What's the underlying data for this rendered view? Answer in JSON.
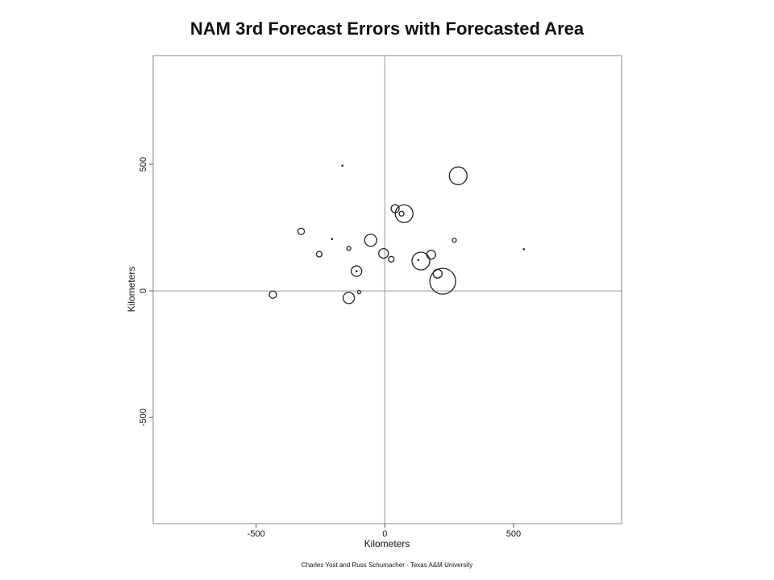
{
  "chart_data": {
    "type": "scatter",
    "title": "NAM 3rd Forecast Errors with Forecasted Area",
    "xlabel": "Kilometers",
    "ylabel": "Kilometers",
    "xlim": [
      -900,
      920
    ],
    "ylim": [
      -920,
      930
    ],
    "xticks": [
      -500,
      0,
      500
    ],
    "yticks": [
      500,
      0,
      -500
    ],
    "xtick_labels": [
      "-500",
      "0",
      "500"
    ],
    "ytick_labels": [
      "500",
      "0",
      "-500"
    ],
    "reference_lines": [
      0
    ],
    "grid": false,
    "legend": "none",
    "credit": "Charles Yost and Russ Schumacher - Texas A&M University",
    "colors": {
      "marker": "#222222",
      "frame": "#888888",
      "reference": "#999999"
    },
    "points": [
      {
        "x": -165,
        "y": 495,
        "size": 0.5
      },
      {
        "x": 285,
        "y": 455,
        "size": 11
      },
      {
        "x": 75,
        "y": 305,
        "size": 11
      },
      {
        "x": 40,
        "y": 325,
        "size": 5
      },
      {
        "x": 65,
        "y": 305,
        "size": 3
      },
      {
        "x": -325,
        "y": 235,
        "size": 4
      },
      {
        "x": -205,
        "y": 205,
        "size": 1
      },
      {
        "x": -55,
        "y": 200,
        "size": 7.5
      },
      {
        "x": 270,
        "y": 200,
        "size": 2.5
      },
      {
        "x": -140,
        "y": 168,
        "size": 2.5
      },
      {
        "x": 540,
        "y": 165,
        "size": 1
      },
      {
        "x": -255,
        "y": 145,
        "size": 3.5
      },
      {
        "x": -5,
        "y": 148,
        "size": 6
      },
      {
        "x": 180,
        "y": 143,
        "size": 5.5
      },
      {
        "x": 25,
        "y": 125,
        "size": 3.5
      },
      {
        "x": 140,
        "y": 118,
        "size": 11
      },
      {
        "x": 130,
        "y": 122,
        "size": 0.8
      },
      {
        "x": -110,
        "y": 78,
        "size": 6.5
      },
      {
        "x": -110,
        "y": 78,
        "size": 1
      },
      {
        "x": 205,
        "y": 68,
        "size": 5.5
      },
      {
        "x": 225,
        "y": 38,
        "size": 16
      },
      {
        "x": -435,
        "y": -15,
        "size": 4.5
      },
      {
        "x": -100,
        "y": -5,
        "size": 2
      },
      {
        "x": -140,
        "y": -28,
        "size": 7
      }
    ]
  }
}
